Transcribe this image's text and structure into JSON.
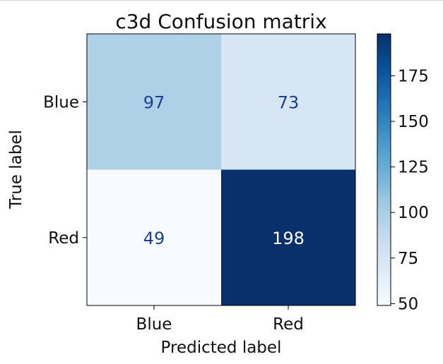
{
  "chart_data": {
    "type": "heatmap",
    "title": "c3d Confusion matrix",
    "xlabel": "Predicted label",
    "ylabel": "True label",
    "x_categories": [
      "Blue",
      "Red"
    ],
    "y_categories": [
      "Blue",
      "Red"
    ],
    "values": [
      [
        97,
        73
      ],
      [
        49,
        198
      ]
    ],
    "colormap": "Blues",
    "colorbar": {
      "range": [
        49,
        198
      ],
      "ticks": [
        50,
        75,
        100,
        125,
        150,
        175
      ],
      "tick_labels": [
        "50",
        "75",
        "100",
        "125",
        "150",
        "175"
      ]
    },
    "text_colors": {
      "low": "#1f3f8f",
      "high": "#ffffff"
    },
    "grid": false
  }
}
